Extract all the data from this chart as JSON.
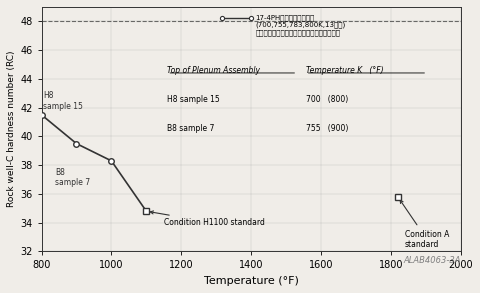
{
  "title": "",
  "xlabel": "Temperature (°F)",
  "ylabel": "Rock well-C hardness number (RC)",
  "xlim": [
    800,
    2000
  ],
  "ylim": [
    32,
    49
  ],
  "yticks": [
    32,
    34,
    36,
    38,
    40,
    42,
    44,
    46,
    48
  ],
  "xticks": [
    800,
    1000,
    1200,
    1400,
    1600,
    1800,
    2000
  ],
  "main_line_x": [
    800,
    900,
    1000,
    1100
  ],
  "main_line_y": [
    41.5,
    39.5,
    38.3,
    34.8
  ],
  "dashed_y": 48,
  "condition_h1100_x": 1100,
  "condition_h1100_y": 34.8,
  "condition_a_x": 1820,
  "condition_a_y": 35.8,
  "legend_line1": "17-4PH商用材の焼錐試験",
  "legend_line2": "(700,755,783,800K,13時間)",
  "legend_line3": "で評価した温度とロックウェル硬度の関係式",
  "annotation_h8_text": "H8\nsample 15",
  "annotation_b8_text": "B8\nsample 7",
  "condition_h1100_text": "Condition H1100 standard",
  "condition_a_text": "Condition A\nstandard",
  "table_header": "Top of Plenum Assembly",
  "table_col2_header": "Temperature K   (°F)",
  "table_row1_label": "H8 sample 15",
  "table_row1_val": "700   (800)",
  "table_row2_label": "B8 sample 7",
  "table_row2_val": "755   (900)",
  "watermark": "ALAB4063-3A",
  "bg_color": "#f0ede8",
  "line_color": "#333333"
}
